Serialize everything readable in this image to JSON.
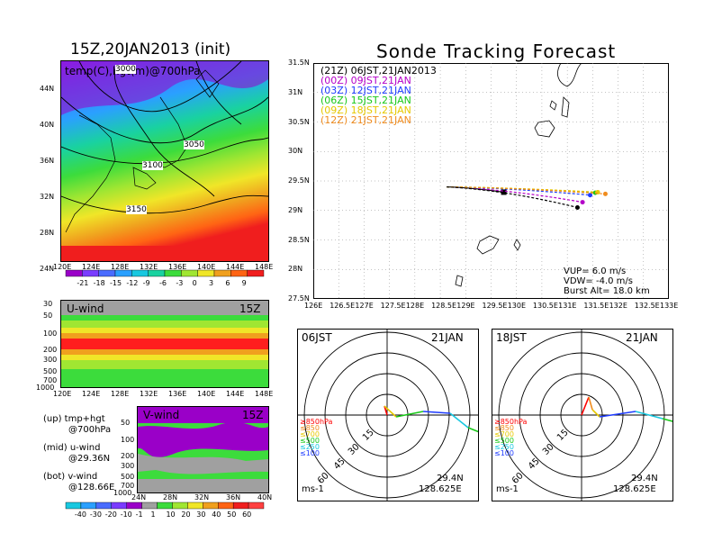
{
  "left_title": "15Z,20JAN2013 (init)",
  "right_title": "Sonde Tracking Forecast",
  "map_panel": {
    "label": "temp(C),hgt(m)@700hPa",
    "lat_ticks": [
      "44N",
      "40N",
      "36N",
      "32N",
      "28N",
      "24N"
    ],
    "lon_ticks": [
      "120E",
      "124E",
      "128E",
      "132E",
      "136E",
      "140E",
      "144E",
      "148E"
    ],
    "contours": [
      "3000",
      "3050",
      "3100",
      "3150"
    ]
  },
  "temp_colorbar": {
    "labels": [
      "-21",
      "-18",
      "-15",
      "-12",
      "-9",
      "-6",
      "-3",
      "0",
      "3",
      "6",
      "9"
    ],
    "colors": [
      "#9a00c8",
      "#7a3cff",
      "#4a6cff",
      "#2aa0ff",
      "#19c8e0",
      "#19d2a0",
      "#3cdc3c",
      "#a0e632",
      "#f0e628",
      "#f0a01e",
      "#ff6414",
      "#f01e1e"
    ]
  },
  "u_panel": {
    "label": "U-wind",
    "time": "15Z",
    "p_ticks": [
      "30",
      "50",
      "100",
      "200",
      "300",
      "500",
      "700",
      "1000"
    ],
    "lon_ticks": [
      "120E",
      "124E",
      "128E",
      "132E",
      "136E",
      "140E",
      "144E",
      "148E"
    ]
  },
  "v_panel": {
    "label": "V-wind",
    "time": "15Z",
    "p_ticks": [
      "50",
      "100",
      "200",
      "300",
      "500",
      "700",
      "1000"
    ],
    "lat_ticks": [
      "24N",
      "28N",
      "32N",
      "36N",
      "40N"
    ]
  },
  "wind_colorbar": {
    "labels": [
      "-40",
      "-30",
      "-20",
      "-10",
      "-1",
      "1",
      "10",
      "20",
      "30",
      "40",
      "50",
      "60"
    ],
    "colors": [
      "#19c8e0",
      "#2aa0ff",
      "#4a6cff",
      "#7a3cff",
      "#9a00c8",
      "#a0a0a0",
      "#3cdc3c",
      "#a0e632",
      "#f0e628",
      "#f0a01e",
      "#ff6414",
      "#f01e1e",
      "#ff4040"
    ]
  },
  "side_notes": [
    {
      "line1": "(up) tmp+hgt",
      "line2": "@700hPa"
    },
    {
      "line1": "(mid) u-wind",
      "line2": "@29.36N"
    },
    {
      "line1": "(bot) v-wind",
      "line2": "@128.66E"
    }
  ],
  "chart_data": {
    "type": "line",
    "title": "Sonde Tracking Forecast",
    "xlim": [
      126,
      133
    ],
    "ylim": [
      27.5,
      31.5
    ],
    "x_ticks": [
      "126E",
      "126.5E",
      "127E",
      "127.5E",
      "128E",
      "128.5E",
      "129E",
      "129.5E",
      "130E",
      "130.5E",
      "131E",
      "131.5E",
      "132E",
      "132.5E",
      "133E"
    ],
    "y_ticks": [
      "31.5N",
      "31N",
      "30.5N",
      "30N",
      "29.5N",
      "29N",
      "28.5N",
      "28N",
      "27.5N"
    ],
    "start": {
      "lon": 128.625,
      "lat": 29.4
    },
    "series": [
      {
        "name": "(21Z)  06JST,21JAN2013",
        "color": "#000000",
        "end": [
          129.75,
          29.31
        ]
      },
      {
        "name": "(00Z)  09JST,21JAN",
        "color": "#b400c8",
        "end": [
          131.3,
          29.14
        ]
      },
      {
        "name": "(03Z)  12JST,21JAN",
        "color": "#1e3cff",
        "end": [
          131.45,
          29.26
        ]
      },
      {
        "name": "(06Z)  15JST,21JAN",
        "color": "#19c819",
        "end": [
          131.55,
          29.3
        ]
      },
      {
        "name": "(09Z)  18JST,21JAN",
        "color": "#e6c800",
        "end": [
          131.6,
          29.31
        ]
      },
      {
        "name": "(12Z)  21JST,21JAN",
        "color": "#f08c1e",
        "end": [
          131.75,
          29.28
        ]
      },
      {
        "name": "",
        "color": "#000000",
        "end": [
          131.2,
          29.05
        ]
      }
    ],
    "params": [
      "VUP=  6.0  m/s",
      "VDW= -4.0  m/s",
      "Burst Alt=  18.0  km"
    ]
  },
  "hodographs": [
    {
      "time": "06JST",
      "date": "21JAN",
      "lat": "29.4N",
      "lon": "128.625E",
      "unit": "ms-1",
      "rings": [
        "15",
        "30",
        "45",
        "60"
      ],
      "levels": [
        {
          "text": "≥850hPa",
          "color": "#ff0000"
        },
        {
          "text": "≤850",
          "color": "#f08c1e"
        },
        {
          "text": "≤700",
          "color": "#e6c800"
        },
        {
          "text": "≤500",
          "color": "#19c819"
        },
        {
          "text": "≤250",
          "color": "#19c8e0"
        },
        {
          "text": "≤100",
          "color": "#1e3cff"
        }
      ]
    },
    {
      "time": "18JST",
      "date": "21JAN",
      "lat": "29.4N",
      "lon": "128.625E",
      "unit": "ms-1",
      "rings": [
        "15",
        "30",
        "45",
        "60"
      ],
      "levels": [
        {
          "text": "≥850hPa",
          "color": "#ff0000"
        },
        {
          "text": "≤850",
          "color": "#f08c1e"
        },
        {
          "text": "≤700",
          "color": "#e6c800"
        },
        {
          "text": "≤500",
          "color": "#19c819"
        },
        {
          "text": "≤250",
          "color": "#19c8e0"
        },
        {
          "text": "≤100",
          "color": "#1e3cff"
        }
      ]
    }
  ]
}
